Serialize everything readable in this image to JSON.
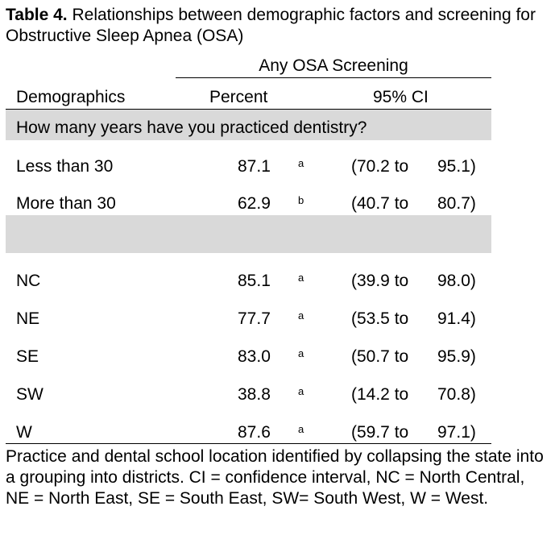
{
  "caption": {
    "label": "Table 4.",
    "text": " Relationships between demographic factors and screening for Obstructive Sleep Apnea (OSA)"
  },
  "table": {
    "group_header": "Any OSA Screening",
    "columns": {
      "demographics": "Demographics",
      "percent": "Percent",
      "ci": "95% CI"
    },
    "section_1": {
      "question": "How many years have you practiced dentistry?",
      "rows": [
        {
          "label": "Less than 30",
          "percent": "87.1",
          "sup": "a",
          "ci_low": "(70.2 to",
          "ci_high": "95.1)"
        },
        {
          "label": "More than 30",
          "percent": "62.9",
          "sup": "b",
          "ci_low": "(40.7 to",
          "ci_high": "80.7)"
        }
      ]
    },
    "section_2": {
      "question": "",
      "rows": [
        {
          "label": "NC",
          "percent": "85.1",
          "sup": "a",
          "ci_low": "(39.9 to",
          "ci_high": "98.0)"
        },
        {
          "label": "NE",
          "percent": "77.7",
          "sup": "a",
          "ci_low": "(53.5 to",
          "ci_high": "91.4)"
        },
        {
          "label": "SE",
          "percent": "83.0",
          "sup": "a",
          "ci_low": "(50.7 to",
          "ci_high": "95.9)"
        },
        {
          "label": "SW",
          "percent": "38.8",
          "sup": "a",
          "ci_low": "(14.2 to",
          "ci_high": "70.8)"
        },
        {
          "label": "W",
          "percent": "87.6",
          "sup": "a",
          "ci_low": "(59.7 to",
          "ci_high": "97.1)"
        }
      ]
    }
  },
  "footnote": "Practice and dental school location identified by collapsing the state into a grouping into districts. CI = confidence interval, NC = North Central, NE = North East, SE = South East, SW= South West, W = West."
}
